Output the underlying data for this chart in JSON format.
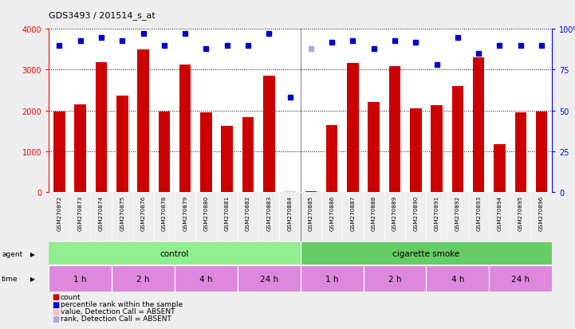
{
  "title": "GDS3493 / 201514_s_at",
  "samples": [
    "GSM270872",
    "GSM270873",
    "GSM270874",
    "GSM270875",
    "GSM270876",
    "GSM270878",
    "GSM270879",
    "GSM270880",
    "GSM270881",
    "GSM270882",
    "GSM270883",
    "GSM270884",
    "GSM270885",
    "GSM270886",
    "GSM270887",
    "GSM270888",
    "GSM270889",
    "GSM270890",
    "GSM270891",
    "GSM270892",
    "GSM270893",
    "GSM270894",
    "GSM270895",
    "GSM270896"
  ],
  "counts": [
    1970,
    2150,
    3190,
    2360,
    3500,
    1970,
    3130,
    1960,
    1630,
    1830,
    2860,
    30,
    30,
    1640,
    3170,
    2200,
    3080,
    2060,
    2140,
    2600,
    3310,
    1180,
    1960,
    1970
  ],
  "percentile_ranks": [
    90,
    93,
    95,
    93,
    97,
    90,
    97,
    88,
    90,
    90,
    97,
    58,
    88,
    92,
    93,
    88,
    93,
    92,
    78,
    95,
    85,
    90,
    90,
    90
  ],
  "absent_count_idx": [
    11
  ],
  "absent_rank_idx": [
    12
  ],
  "bar_color": "#cc0000",
  "dot_color": "#0000cc",
  "absent_bar_color": "#ffbbbb",
  "absent_dot_color": "#aaaadd",
  "ylim_left": [
    0,
    4000
  ],
  "ylim_right": [
    0,
    100
  ],
  "yticks_left": [
    0,
    1000,
    2000,
    3000,
    4000
  ],
  "yticks_right": [
    0,
    25,
    50,
    75,
    100
  ],
  "yticklabels_right": [
    "0",
    "25",
    "50",
    "75",
    "100%"
  ],
  "time_groups": [
    {
      "label": "1 h",
      "start": 0,
      "end": 2,
      "color": "#dd88dd"
    },
    {
      "label": "2 h",
      "start": 3,
      "end": 5,
      "color": "#dd88dd"
    },
    {
      "label": "4 h",
      "start": 6,
      "end": 8,
      "color": "#dd88dd"
    },
    {
      "label": "24 h",
      "start": 9,
      "end": 11,
      "color": "#dd88dd"
    },
    {
      "label": "1 h",
      "start": 12,
      "end": 14,
      "color": "#dd88dd"
    },
    {
      "label": "2 h",
      "start": 15,
      "end": 17,
      "color": "#dd88dd"
    },
    {
      "label": "4 h",
      "start": 18,
      "end": 20,
      "color": "#dd88dd"
    },
    {
      "label": "24 h",
      "start": 21,
      "end": 23,
      "color": "#dd88dd"
    }
  ],
  "bg_color": "#cccccc",
  "plot_bg_color": "#ffffff",
  "fig_bg_color": "#eeeeee",
  "legend_colors": [
    "#cc0000",
    "#0000cc",
    "#ffbbbb",
    "#aaaadd"
  ],
  "legend_labels": [
    "count",
    "percentile rank within the sample",
    "value, Detection Call = ABSENT",
    "rank, Detection Call = ABSENT"
  ]
}
